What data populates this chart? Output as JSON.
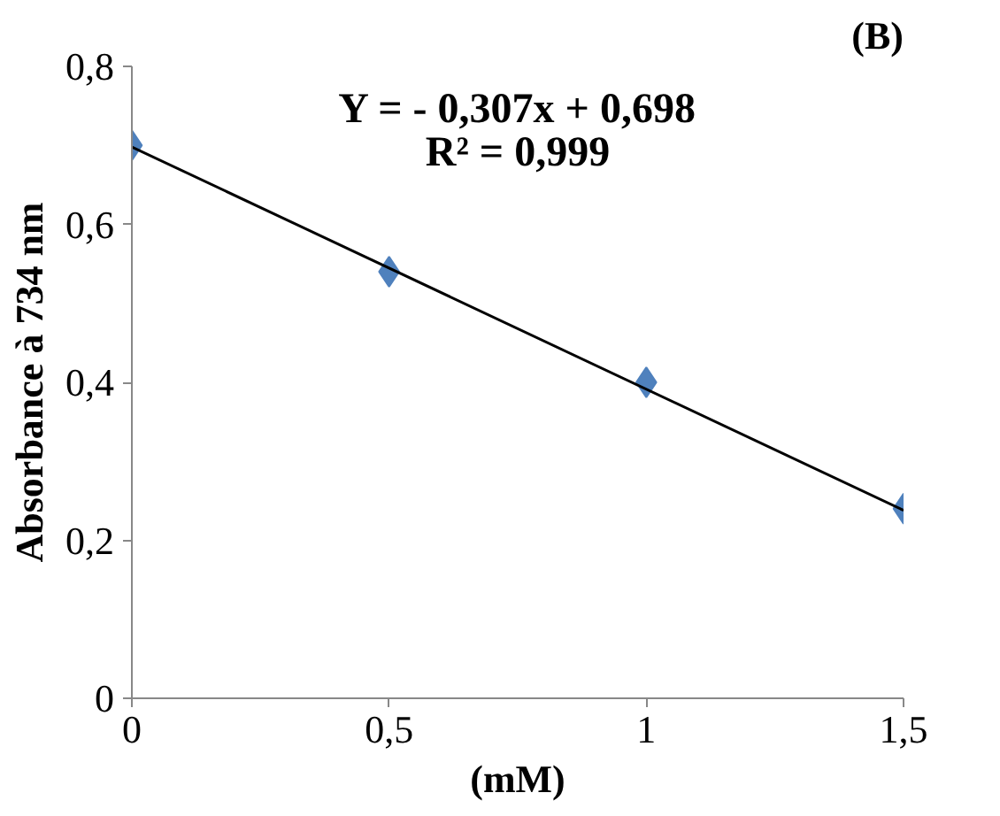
{
  "chart_data": {
    "type": "scatter",
    "title": "(B)",
    "xlabel": "(mM)",
    "ylabel": "Absorbance à 734 nm",
    "annotations": [
      "Y = - 0,307x + 0,698",
      "R² = 0,999"
    ],
    "xlim": [
      0,
      1.5
    ],
    "ylim": [
      0,
      0.8
    ],
    "xticks": [
      0,
      {
        "value": 0.5,
        "label": "0,5"
      },
      1,
      {
        "value": 1.5,
        "label": "1,5"
      }
    ],
    "yticks": [
      0,
      {
        "value": 0.2,
        "label": "0,2"
      },
      {
        "value": 0.4,
        "label": "0,4"
      },
      {
        "value": 0.6,
        "label": "0,6"
      },
      {
        "value": 0.8,
        "label": "0,8"
      }
    ],
    "grid": false,
    "marker": "diamond",
    "series": [
      {
        "color": "#4f81bd",
        "x": [
          0,
          0.5,
          1,
          1.5
        ],
        "values": [
          0.7,
          0.54,
          0.4,
          0.24
        ]
      },
      {
        "type": "line",
        "color": "#000000",
        "x": [
          0,
          1.5
        ],
        "values": [
          0.698,
          0.238
        ],
        "marker": "none"
      }
    ]
  }
}
